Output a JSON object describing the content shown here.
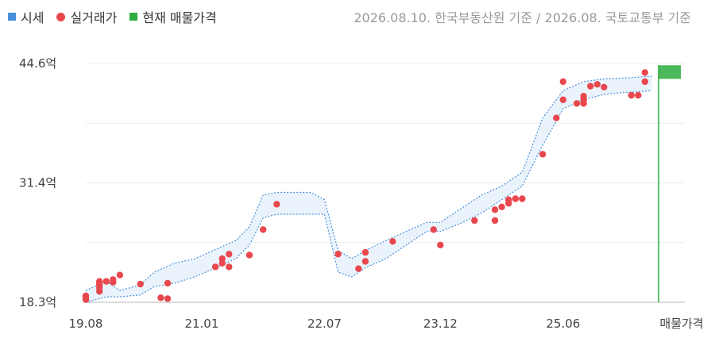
{
  "legend": {
    "items": [
      {
        "label": "시세",
        "color": "#4a90d9",
        "shape": "square"
      },
      {
        "label": "실거래가",
        "color": "#e8474d",
        "shape": "circle"
      },
      {
        "label": "현재 매물가격",
        "color": "#2bac3e",
        "shape": "square"
      }
    ]
  },
  "source_note": "2026.08.10. 한국부동산원 기준 / 2026.08. 국토교통부 기준",
  "chart_data": {
    "type": "scatter",
    "title": "",
    "xlabel": "",
    "ylabel": "",
    "x_range": [
      "2019.08",
      "2026.08"
    ],
    "ylim": [
      18.3,
      44.6
    ],
    "y_ticks": [
      "18.3억",
      "31.4억",
      "44.6억"
    ],
    "x_ticks": [
      "19.08",
      "21.01",
      "22.07",
      "23.12",
      "25.06"
    ],
    "extra_x_label": "매물가격",
    "grid": true,
    "market_band": {
      "name": "시세",
      "color": "#4a90d9",
      "fill": "#eaf3fc",
      "dates": [
        "2019.08",
        "2019.11",
        "2020.01",
        "2020.04",
        "2020.06",
        "2020.09",
        "2020.12",
        "2021.03",
        "2021.06",
        "2021.08",
        "2021.10",
        "2021.12",
        "2022.02",
        "2022.05",
        "2022.07",
        "2022.09",
        "2022.11",
        "2023.01",
        "2023.04",
        "2023.07",
        "2023.10",
        "2023.12",
        "2024.03",
        "2024.06",
        "2024.09",
        "2024.12",
        "2025.03",
        "2025.06",
        "2025.09",
        "2025.12",
        "2026.03",
        "2026.07"
      ],
      "upper": [
        19.6,
        20.6,
        19.6,
        20.2,
        21.6,
        22.6,
        23.1,
        24.1,
        25.1,
        26.6,
        30.1,
        30.4,
        30.4,
        30.4,
        29.6,
        24.0,
        23.1,
        24.0,
        25.1,
        26.1,
        27.1,
        27.1,
        28.6,
        30.1,
        31.1,
        32.6,
        38.6,
        41.6,
        42.6,
        42.9,
        43.0,
        43.2
      ],
      "lower": [
        18.3,
        18.9,
        18.9,
        19.1,
        20.0,
        20.4,
        21.1,
        22.1,
        23.1,
        24.6,
        27.6,
        28.0,
        28.0,
        28.0,
        28.0,
        21.6,
        21.1,
        22.1,
        23.1,
        24.6,
        26.1,
        26.1,
        27.0,
        28.1,
        29.6,
        31.1,
        35.6,
        39.6,
        40.6,
        41.2,
        41.4,
        41.6
      ]
    },
    "transactions": {
      "name": "실거래가",
      "color": "#e8474d",
      "points": [
        {
          "x": "2019.08",
          "y": 18.6
        },
        {
          "x": "2019.08",
          "y": 18.8
        },
        {
          "x": "2019.08",
          "y": 19.0
        },
        {
          "x": "2019.10",
          "y": 19.5
        },
        {
          "x": "2019.10",
          "y": 19.9
        },
        {
          "x": "2019.10",
          "y": 20.2
        },
        {
          "x": "2019.10",
          "y": 20.4
        },
        {
          "x": "2019.11",
          "y": 20.6
        },
        {
          "x": "2019.10",
          "y": 20.6
        },
        {
          "x": "2019.12",
          "y": 20.5
        },
        {
          "x": "2019.12",
          "y": 20.8
        },
        {
          "x": "2020.01",
          "y": 21.3
        },
        {
          "x": "2020.04",
          "y": 20.3
        },
        {
          "x": "2020.07",
          "y": 18.8
        },
        {
          "x": "2020.08",
          "y": 18.7
        },
        {
          "x": "2020.08",
          "y": 20.4
        },
        {
          "x": "2021.03",
          "y": 22.2
        },
        {
          "x": "2021.04",
          "y": 22.6
        },
        {
          "x": "2021.04",
          "y": 23.1
        },
        {
          "x": "2021.05",
          "y": 23.6
        },
        {
          "x": "2021.05",
          "y": 22.2
        },
        {
          "x": "2021.08",
          "y": 23.5
        },
        {
          "x": "2021.10",
          "y": 26.3
        },
        {
          "x": "2021.12",
          "y": 29.1
        },
        {
          "x": "2022.09",
          "y": 23.6
        },
        {
          "x": "2022.12",
          "y": 22.0
        },
        {
          "x": "2023.01",
          "y": 22.8
        },
        {
          "x": "2023.01",
          "y": 23.8
        },
        {
          "x": "2023.05",
          "y": 25.0
        },
        {
          "x": "2023.11",
          "y": 26.3
        },
        {
          "x": "2023.12",
          "y": 24.6
        },
        {
          "x": "2024.05",
          "y": 27.3
        },
        {
          "x": "2024.08",
          "y": 27.3
        },
        {
          "x": "2024.08",
          "y": 28.5
        },
        {
          "x": "2024.09",
          "y": 28.8
        },
        {
          "x": "2024.10",
          "y": 29.2
        },
        {
          "x": "2024.10",
          "y": 29.6
        },
        {
          "x": "2024.11",
          "y": 29.7
        },
        {
          "x": "2024.12",
          "y": 29.7
        },
        {
          "x": "2025.03",
          "y": 34.6
        },
        {
          "x": "2025.05",
          "y": 38.6
        },
        {
          "x": "2025.06",
          "y": 40.6
        },
        {
          "x": "2025.06",
          "y": 42.6
        },
        {
          "x": "2025.08",
          "y": 40.2
        },
        {
          "x": "2025.09",
          "y": 40.2
        },
        {
          "x": "2025.09",
          "y": 40.6
        },
        {
          "x": "2025.09",
          "y": 41.0
        },
        {
          "x": "2025.10",
          "y": 42.1
        },
        {
          "x": "2025.11",
          "y": 42.3
        },
        {
          "x": "2025.12",
          "y": 42.0
        },
        {
          "x": "2026.04",
          "y": 41.1
        },
        {
          "x": "2026.05",
          "y": 41.1
        },
        {
          "x": "2026.06",
          "y": 42.6
        },
        {
          "x": "2026.06",
          "y": 43.6
        }
      ]
    },
    "current_listing": {
      "name": "현재 매물가격",
      "color": "#2bac3e",
      "low": 42.9,
      "high": 44.4
    }
  }
}
